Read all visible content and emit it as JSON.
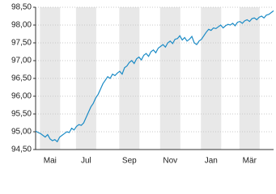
{
  "chart_data": {
    "type": "line",
    "categories": [
      null,
      null,
      null,
      null,
      null,
      null,
      "Mai",
      null,
      null,
      null,
      null,
      null,
      null,
      null,
      null,
      null,
      null,
      null,
      null,
      null,
      null,
      "Jul",
      null,
      null,
      null,
      null,
      null,
      null,
      null,
      null,
      null,
      null,
      null,
      null,
      null,
      null,
      null,
      null,
      null,
      "Sep",
      null,
      null,
      null,
      null,
      null,
      null,
      null,
      null,
      null,
      null,
      null,
      null,
      null,
      null,
      null,
      null,
      "Nov",
      null,
      null,
      null,
      null,
      null,
      null,
      null,
      null,
      null,
      null,
      null,
      null,
      null,
      null,
      null,
      null,
      "Jan",
      null,
      null,
      null,
      null,
      null,
      null,
      null,
      null,
      null,
      null,
      null,
      null,
      null,
      null,
      null,
      "Mär",
      null,
      null,
      null,
      null,
      null,
      null,
      null,
      null,
      null,
      null
    ],
    "series": [
      {
        "color": "#1b8bc6",
        "values": [
          95.02,
          94.98,
          94.95,
          94.9,
          94.85,
          94.92,
          94.8,
          94.75,
          94.78,
          94.72,
          94.85,
          94.9,
          94.95,
          95.0,
          94.98,
          95.1,
          95.05,
          95.15,
          95.2,
          95.18,
          95.25,
          95.4,
          95.55,
          95.7,
          95.8,
          95.95,
          96.05,
          96.2,
          96.35,
          96.45,
          96.55,
          96.5,
          96.62,
          96.58,
          96.65,
          96.7,
          96.62,
          96.8,
          96.85,
          96.95,
          97.0,
          96.92,
          97.05,
          97.1,
          97.02,
          97.15,
          97.2,
          97.12,
          97.25,
          97.3,
          97.22,
          97.35,
          97.4,
          97.45,
          97.38,
          97.5,
          97.55,
          97.48,
          97.6,
          97.62,
          97.7,
          97.58,
          97.65,
          97.55,
          97.6,
          97.68,
          97.5,
          97.45,
          97.55,
          97.6,
          97.7,
          97.8,
          97.88,
          97.85,
          97.92,
          97.9,
          97.95,
          98.0,
          97.92,
          97.98,
          98.02,
          98.0,
          98.05,
          97.98,
          98.08,
          98.1,
          98.05,
          98.12,
          98.15,
          98.1,
          98.18,
          98.2,
          98.15,
          98.22,
          98.25,
          98.2,
          98.28,
          98.3,
          98.35,
          98.4
        ]
      }
    ],
    "ylim": [
      94.5,
      98.5
    ],
    "yticks": [
      {
        "value": 94.5,
        "label": "94,50"
      },
      {
        "value": 95,
        "label": "95,00"
      },
      {
        "value": 95.5,
        "label": "95,50"
      },
      {
        "value": 96,
        "label": "96,00"
      },
      {
        "value": 96.5,
        "label": "96,50"
      },
      {
        "value": 97,
        "label": "97,00"
      },
      {
        "value": 97.5,
        "label": "97,50"
      },
      {
        "value": 98,
        "label": "98,00"
      },
      {
        "value": 98.5,
        "label": "98,50"
      }
    ],
    "grid": true
  }
}
